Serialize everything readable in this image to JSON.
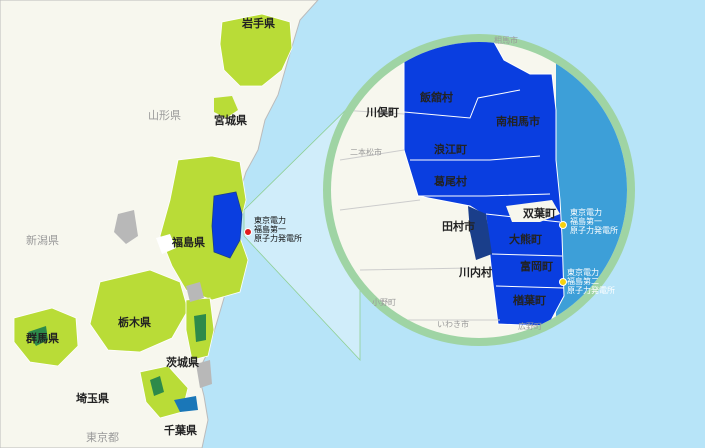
{
  "colors": {
    "sea": "#b7e4f8",
    "land": "#f7f7ee",
    "zone_light": "#b9dc37",
    "zone_dark": "#2d8a4a",
    "evac": "#0a3ee0",
    "evac_dark": "#1a3e8a",
    "gray_area": "#b8b8b8",
    "circle_border": "#9fd4a4",
    "circle_sea": "#3d9fd8",
    "plant_dot_red": "#e21b1b",
    "plant_dot_yellow": "#f5d10f"
  },
  "map": {
    "prefectures": {
      "iwate": "岩手県",
      "yamagata": "山形県",
      "miyagi": "宮城県",
      "niigata": "新潟県",
      "fukushima": "福島県",
      "gunma": "群馬県",
      "tochigi": "栃木県",
      "ibaraki": "茨城県",
      "saitama": "埼玉県",
      "tokyo": "東京都",
      "chiba": "千葉県"
    },
    "plant_label": "東京電力\n福島第一\n原子力発電所"
  },
  "inset": {
    "municipalities": {
      "iitate": "飯舘村",
      "kawamata": "川俣町",
      "minamisoma": "南相馬市",
      "namie": "浪江町",
      "katsurao": "葛尾村",
      "futaba": "双葉町",
      "tamura": "田村市",
      "okuma": "大熊町",
      "kawauchi": "川内村",
      "tomioka": "富岡町",
      "naraha": "楢葉町"
    },
    "gray_labels": {
      "soma": "相馬市",
      "nihonmatsu": "二本松市",
      "iwaki": "いわき市",
      "hirono": "広野町",
      "ono": "小野町"
    },
    "plant1_label": "東京電力\n福島第一\n原子力発電所",
    "plant2_label": "東京電力\n福島第二\n原子力発電所"
  }
}
